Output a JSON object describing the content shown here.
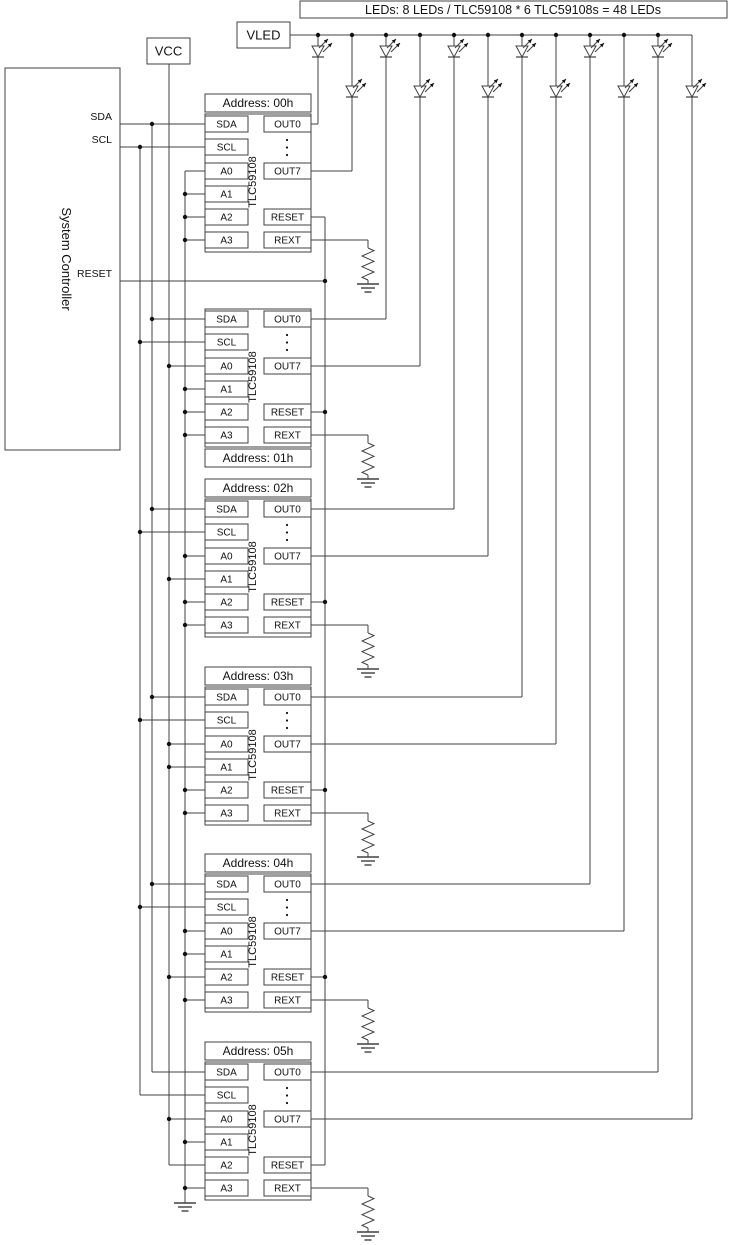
{
  "note": "LEDs: 8 LEDs / TLC59108 * 6 TLC59108s = 48 LEDs",
  "vled_label": "VLED",
  "vcc_label": "VCC",
  "controller": {
    "label": "System Controller",
    "pins": {
      "sda": "SDA",
      "scl": "SCL",
      "reset": "RESET"
    }
  },
  "chip_name": "TLC59108",
  "left_pins": [
    "SDA",
    "SCL",
    "A0",
    "A1",
    "A2",
    "A3"
  ],
  "right_pins": [
    "OUT0",
    "OUT7",
    "RESET",
    "REXT"
  ],
  "chips": [
    {
      "address_label": "Address: 00h"
    },
    {
      "address_label": "Address: 01h"
    },
    {
      "address_label": "Address: 02h"
    },
    {
      "address_label": "Address: 03h"
    },
    {
      "address_label": "Address: 04h"
    },
    {
      "address_label": "Address: 05h"
    }
  ],
  "colors": {
    "line": "#404040",
    "text": "#111111",
    "background": "#ffffff"
  }
}
